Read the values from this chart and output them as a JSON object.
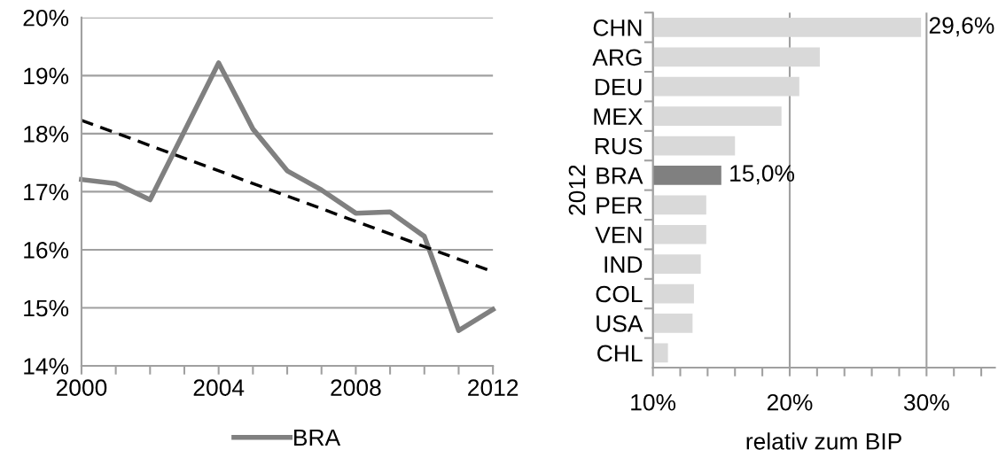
{
  "chart_data": [
    {
      "type": "line",
      "x": [
        2000,
        2001,
        2002,
        2003,
        2004,
        2005,
        2006,
        2007,
        2008,
        2009,
        2010,
        2011,
        2012
      ],
      "series": [
        {
          "name": "BRA",
          "color": "#808080",
          "values": [
            17.21,
            17.14,
            16.86,
            18.04,
            19.22,
            18.08,
            17.36,
            17.03,
            16.63,
            16.65,
            16.23,
            14.61,
            14.97
          ]
        },
        {
          "type": "line",
          "color": "#000000",
          "line_style": "dashed",
          "x": [
            2000,
            2012
          ],
          "values": [
            18.23,
            15.62
          ]
        }
      ],
      "xlim": [
        2000,
        2012
      ],
      "xticks": [
        2000,
        {
          "value": 2001,
          "label": null
        },
        {
          "value": 2002,
          "label": null
        },
        {
          "value": 2003,
          "label": null
        },
        2004,
        {
          "value": 2005,
          "label": null
        },
        {
          "value": 2006,
          "label": null
        },
        {
          "value": 2007,
          "label": null
        },
        2008,
        {
          "value": 2009,
          "label": null
        },
        {
          "value": 2010,
          "label": null
        },
        {
          "value": 2011,
          "label": null
        },
        2012
      ],
      "ylim": [
        14,
        20
      ],
      "yticks": [
        {
          "value": 14,
          "label": "14%"
        },
        {
          "value": 15,
          "label": "15%"
        },
        {
          "value": 16,
          "label": "16%"
        },
        {
          "value": 17,
          "label": "17%"
        },
        {
          "value": 18,
          "label": "18%"
        },
        {
          "value": 19,
          "label": "19%"
        },
        {
          "value": 20,
          "label": "20%"
        }
      ],
      "grid": "y",
      "legend": "bottom",
      "line_style": "solid",
      "marker": "none"
    },
    {
      "type": "bar",
      "orientation": "horizontal",
      "ylabel": "2012",
      "xlabel": "relativ zum BIP",
      "categories": [
        "CHN",
        "ARG",
        "DEU",
        "MEX",
        "RUS",
        "BRA",
        "PER",
        "VEN",
        "IND",
        "COL",
        "USA",
        "CHL"
      ],
      "values": [
        29.6,
        22.2,
        20.7,
        19.4,
        16.0,
        15.0,
        13.9,
        13.9,
        13.5,
        13.0,
        12.9,
        11.1
      ],
      "colors": [
        "#d9d9d9",
        "#d9d9d9",
        "#d9d9d9",
        "#d9d9d9",
        "#d9d9d9",
        "#808080",
        "#d9d9d9",
        "#d9d9d9",
        "#d9d9d9",
        "#d9d9d9",
        "#d9d9d9",
        "#d9d9d9"
      ],
      "value_labels": [
        "29,6%",
        null,
        null,
        null,
        null,
        "15,0%",
        null,
        null,
        null,
        null,
        null,
        null
      ],
      "xlim": [
        10,
        35
      ],
      "xticks": [
        {
          "value": 10,
          "label": "10%"
        },
        {
          "value": 12,
          "label": null
        },
        {
          "value": 14,
          "label": null
        },
        {
          "value": 16,
          "label": null
        },
        {
          "value": 18,
          "label": null
        },
        {
          "value": 20,
          "label": "20%"
        },
        {
          "value": 22,
          "label": null
        },
        {
          "value": 24,
          "label": null
        },
        {
          "value": 26,
          "label": null
        },
        {
          "value": 28,
          "label": null
        },
        {
          "value": 30,
          "label": "30%"
        },
        {
          "value": 32,
          "label": null
        },
        {
          "value": 34,
          "label": null
        }
      ],
      "grid": "x"
    }
  ]
}
